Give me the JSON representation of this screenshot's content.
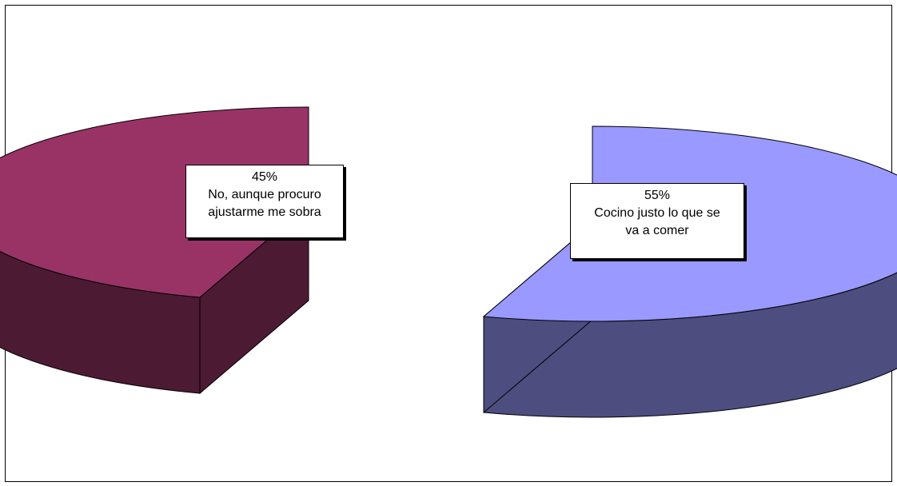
{
  "chart_data": {
    "type": "pie",
    "style": "3d-exploded",
    "title": "",
    "slices": [
      {
        "label": "No, aunque procuro ajustarme me sobra",
        "label_lines": [
          "No, aunque procuro",
          "ajustarme me sobra"
        ],
        "percent_label": "45%",
        "value": 45,
        "color": "#993366",
        "side_color": "#4D1A33"
      },
      {
        "label": "Cocino justo lo que se va a comer",
        "label_lines": [
          "Cocino justo lo que se",
          "va a comer"
        ],
        "percent_label": "55%",
        "value": 55,
        "color": "#9999FF",
        "side_color": "#4D4D80"
      }
    ],
    "legend": "none",
    "data_labels": "inside"
  }
}
